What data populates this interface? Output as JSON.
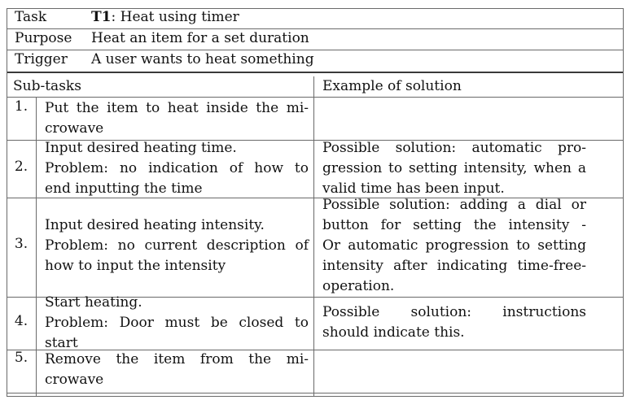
{
  "header": {
    "task_label": "Task",
    "task_id": "T1",
    "task_title": ": Heat using timer",
    "purpose_label": "Purpose",
    "purpose_value": "Heat an item for a set duration",
    "trigger_label": "Trigger",
    "trigger_value": "A user wants to heat something"
  },
  "columns": {
    "subtasks": "Sub-tasks",
    "solution": "Example of solution"
  },
  "rows": [
    {
      "num": "1.",
      "subtask": [
        "Put the item to heat inside the mi-",
        "crowave"
      ],
      "solution": []
    },
    {
      "num": "2.",
      "subtask": [
        "Input desired heating time.",
        "Problem:  no indication of how to",
        "end inputting the time"
      ],
      "solution": [
        "Possible solution:  automatic pro-",
        "gression to setting intensity, when a",
        "valid time has been input."
      ]
    },
    {
      "num": "3.",
      "subtask": [
        "Input desired heating intensity.",
        "Problem:  no current description of",
        "how to input the intensity"
      ],
      "solution": [
        "Possible solution:  adding a dial or",
        "button for setting the intensity -",
        "Or automatic progression to setting",
        "intensity after indicating time-free-",
        "operation."
      ]
    },
    {
      "num": "4.",
      "subtask": [
        "Start heating.",
        "Problem:  Door must be closed to",
        "start"
      ],
      "solution": [
        "Possible solution:  instructions",
        "should indicate this."
      ]
    },
    {
      "num": "5.",
      "subtask": [
        "Remove the item from the mi-",
        "crowave"
      ],
      "solution": []
    }
  ]
}
